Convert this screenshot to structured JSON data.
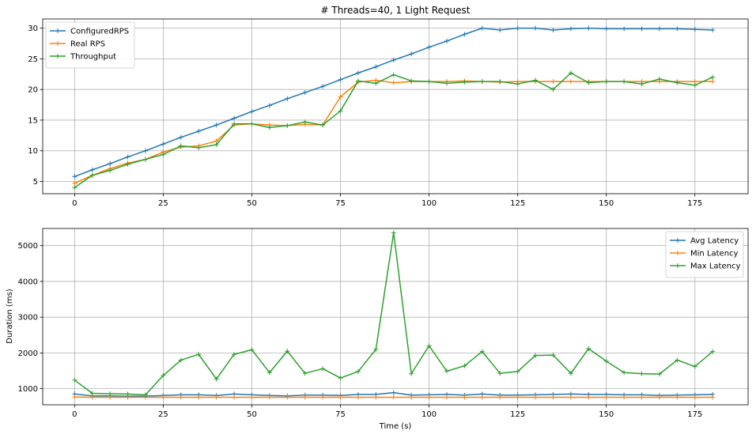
{
  "chart_data": [
    {
      "type": "line",
      "title": "# Threads=40, 1 Light Request",
      "xlabel": "",
      "ylabel": "",
      "xlim": [
        -9,
        190
      ],
      "ylim": [
        3.0,
        31.5
      ],
      "xticks": [
        0,
        25,
        50,
        75,
        100,
        125,
        150,
        175
      ],
      "yticks": [
        5,
        10,
        15,
        20,
        25,
        30
      ],
      "grid": true,
      "legend_position": "top-left",
      "x": [
        0,
        5,
        10,
        15,
        20,
        25,
        30,
        35,
        40,
        45,
        50,
        55,
        60,
        65,
        70,
        75,
        80,
        85,
        90,
        95,
        100,
        105,
        110,
        115,
        120,
        125,
        130,
        135,
        140,
        145,
        150,
        155,
        160,
        165,
        170,
        175,
        180
      ],
      "series": [
        {
          "name": "ConfiguredRPS",
          "color": "#1f77b4",
          "values": [
            5.8,
            6.9,
            7.9,
            9.0,
            10.0,
            11.1,
            12.2,
            13.2,
            14.2,
            15.3,
            16.4,
            17.4,
            18.5,
            19.5,
            20.5,
            21.6,
            22.7,
            23.7,
            24.8,
            25.8,
            26.9,
            27.9,
            29.0,
            30.0,
            29.7,
            30.0,
            30.0,
            29.7,
            29.9,
            30.0,
            29.9,
            29.9,
            29.9,
            29.9,
            29.9,
            29.8,
            29.7
          ]
        },
        {
          "name": "Real RPS",
          "color": "#ff7f0e",
          "values": [
            4.7,
            6.0,
            7.1,
            8.0,
            8.6,
            9.8,
            10.6,
            10.8,
            11.6,
            14.2,
            14.4,
            14.2,
            14.1,
            14.3,
            14.2,
            18.8,
            21.2,
            21.5,
            21.1,
            21.3,
            21.3,
            21.3,
            21.4,
            21.3,
            21.2,
            21.3,
            21.3,
            21.3,
            21.3,
            21.3,
            21.3,
            21.3,
            21.3,
            21.3,
            21.3,
            21.3,
            21.3
          ]
        },
        {
          "name": "Throughput",
          "color": "#2ca02c",
          "values": [
            4.0,
            6.0,
            6.8,
            7.8,
            8.6,
            9.4,
            10.8,
            10.5,
            11.0,
            14.4,
            14.4,
            13.8,
            14.1,
            14.7,
            14.2,
            16.5,
            21.4,
            21.0,
            22.4,
            21.4,
            21.3,
            21.0,
            21.2,
            21.3,
            21.3,
            20.9,
            21.5,
            20.0,
            22.7,
            21.1,
            21.3,
            21.3,
            20.9,
            21.7,
            21.1,
            20.7,
            22.0
          ]
        }
      ]
    },
    {
      "type": "line",
      "title": "",
      "xlabel": "Time (s)",
      "ylabel": "Duration (ms)",
      "xlim": [
        -9,
        190
      ],
      "ylim": [
        550,
        5480
      ],
      "xticks": [
        0,
        25,
        50,
        75,
        100,
        125,
        150,
        175
      ],
      "yticks": [
        1000,
        2000,
        3000,
        4000,
        5000
      ],
      "grid": true,
      "legend_position": "top-right",
      "x": [
        0,
        5,
        10,
        15,
        20,
        25,
        30,
        35,
        40,
        45,
        50,
        55,
        60,
        65,
        70,
        75,
        80,
        85,
        90,
        95,
        100,
        105,
        110,
        115,
        120,
        125,
        130,
        135,
        140,
        145,
        150,
        155,
        160,
        165,
        170,
        175,
        180
      ],
      "series": [
        {
          "name": "Avg Latency",
          "color": "#1f77b4",
          "values": [
            850,
            800,
            800,
            790,
            790,
            810,
            830,
            830,
            810,
            850,
            830,
            810,
            800,
            820,
            820,
            810,
            840,
            840,
            890,
            820,
            830,
            840,
            820,
            850,
            820,
            820,
            830,
            840,
            850,
            840,
            840,
            830,
            830,
            810,
            820,
            830,
            840
          ]
        },
        {
          "name": "Min Latency",
          "color": "#ff7f0e",
          "values": [
            770,
            760,
            760,
            760,
            760,
            760,
            760,
            760,
            760,
            760,
            760,
            760,
            760,
            760,
            760,
            760,
            760,
            760,
            760,
            760,
            760,
            760,
            760,
            760,
            760,
            760,
            760,
            760,
            760,
            760,
            760,
            760,
            760,
            760,
            760,
            760,
            760
          ]
        },
        {
          "name": "Max Latency",
          "color": "#2ca02c",
          "values": [
            1240,
            870,
            860,
            850,
            830,
            1370,
            1800,
            1960,
            1270,
            1960,
            2090,
            1450,
            2050,
            1430,
            1560,
            1300,
            1480,
            2100,
            5360,
            1420,
            2200,
            1490,
            1640,
            2040,
            1430,
            1480,
            1930,
            1940,
            1430,
            2120,
            1770,
            1450,
            1420,
            1410,
            1800,
            1620,
            2040
          ]
        }
      ]
    }
  ]
}
